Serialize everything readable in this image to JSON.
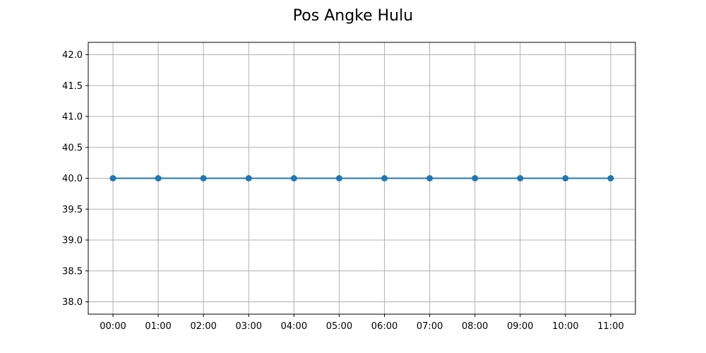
{
  "chart_data": {
    "type": "line",
    "title": "Pos Angke Hulu",
    "xlabel": "",
    "ylabel": "",
    "categories": [
      "00:00",
      "01:00",
      "02:00",
      "03:00",
      "04:00",
      "05:00",
      "06:00",
      "07:00",
      "08:00",
      "09:00",
      "10:00",
      "11:00"
    ],
    "series": [
      {
        "values": [
          40,
          40,
          40,
          40,
          40,
          40,
          40,
          40,
          40,
          40,
          40,
          40
        ],
        "color": "#1f77b4",
        "marker": "circle"
      }
    ],
    "ylim": [
      37.8,
      42.2
    ],
    "yticks": [
      "38.0",
      "38.5",
      "39.0",
      "39.5",
      "40.0",
      "40.5",
      "41.0",
      "41.5",
      "42.0"
    ],
    "grid": true,
    "grid_color": "#b0b0b0",
    "legend": false
  }
}
